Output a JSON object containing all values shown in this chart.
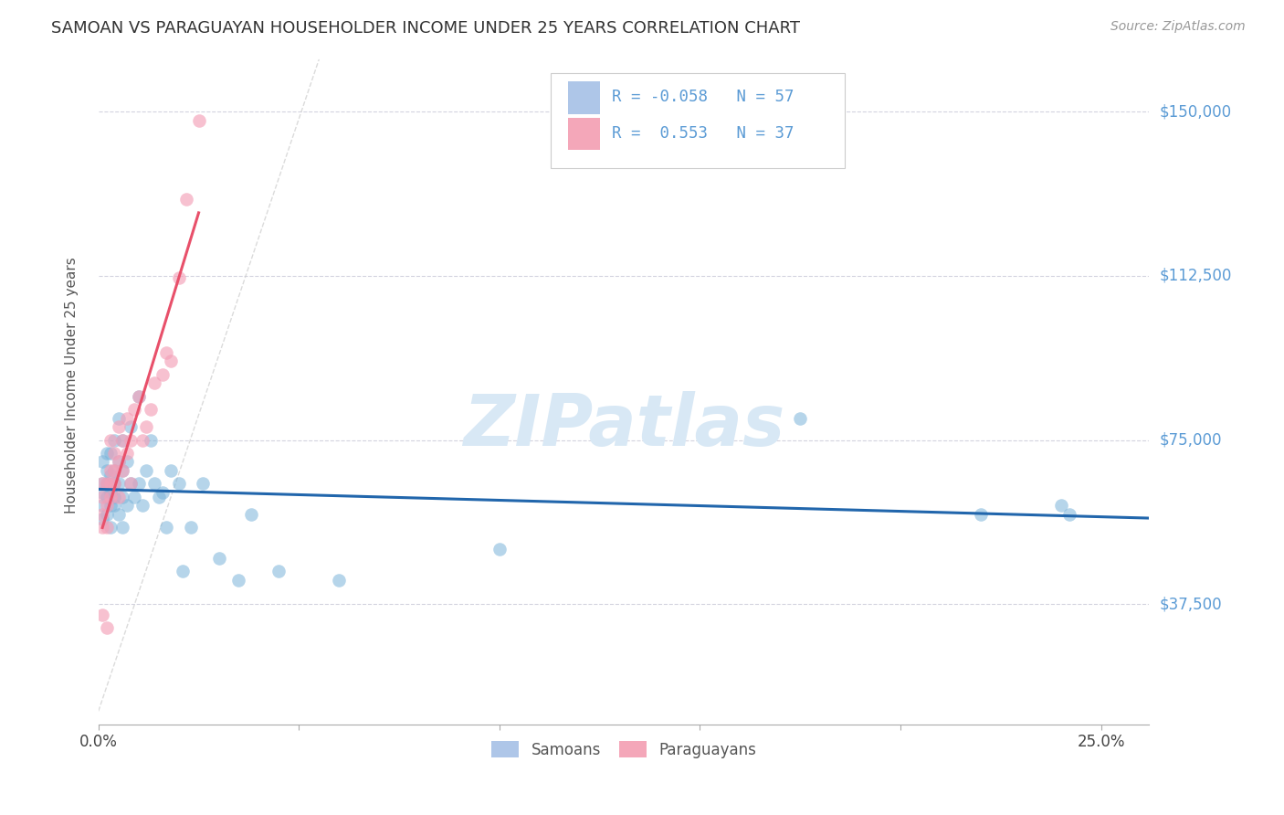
{
  "title": "SAMOAN VS PARAGUAYAN HOUSEHOLDER INCOME UNDER 25 YEARS CORRELATION CHART",
  "source": "Source: ZipAtlas.com",
  "ylabel": "Householder Income Under 25 years",
  "xlim": [
    0.0,
    0.262
  ],
  "ylim": [
    10000,
    165000
  ],
  "samoan_color": "#7ab3d9",
  "paraguayan_color": "#f4a0b8",
  "samoan_trend_color": "#2166ac",
  "paraguayan_trend_color": "#e8506a",
  "legend_blue_color": "#aec6e8",
  "legend_pink_color": "#f4a7b9",
  "watermark_color": "#d8e8f5",
  "r_samoan": -0.058,
  "n_samoan": 57,
  "r_paraguayan": 0.553,
  "n_paraguayan": 37,
  "samoans_x": [
    0.001,
    0.001,
    0.001,
    0.001,
    0.001,
    0.002,
    0.002,
    0.002,
    0.002,
    0.002,
    0.003,
    0.003,
    0.003,
    0.003,
    0.003,
    0.004,
    0.004,
    0.004,
    0.004,
    0.004,
    0.005,
    0.005,
    0.005,
    0.005,
    0.006,
    0.006,
    0.006,
    0.006,
    0.007,
    0.007,
    0.008,
    0.008,
    0.009,
    0.01,
    0.01,
    0.011,
    0.012,
    0.013,
    0.014,
    0.015,
    0.016,
    0.017,
    0.018,
    0.02,
    0.021,
    0.023,
    0.026,
    0.03,
    0.035,
    0.038,
    0.045,
    0.06,
    0.1,
    0.175,
    0.22,
    0.24,
    0.242
  ],
  "samoans_y": [
    63000,
    65000,
    60000,
    70000,
    57000,
    68000,
    62000,
    72000,
    58000,
    65000,
    60000,
    63000,
    67000,
    55000,
    72000,
    65000,
    60000,
    68000,
    75000,
    62000,
    58000,
    70000,
    65000,
    80000,
    75000,
    62000,
    68000,
    55000,
    70000,
    60000,
    78000,
    65000,
    62000,
    85000,
    65000,
    60000,
    68000,
    75000,
    65000,
    62000,
    63000,
    55000,
    68000,
    65000,
    45000,
    55000,
    65000,
    48000,
    43000,
    58000,
    45000,
    43000,
    50000,
    80000,
    58000,
    60000,
    58000
  ],
  "paraguayans_x": [
    0.001,
    0.001,
    0.001,
    0.001,
    0.001,
    0.002,
    0.002,
    0.002,
    0.002,
    0.003,
    0.003,
    0.003,
    0.003,
    0.004,
    0.004,
    0.004,
    0.005,
    0.005,
    0.005,
    0.006,
    0.006,
    0.007,
    0.007,
    0.008,
    0.008,
    0.009,
    0.01,
    0.011,
    0.012,
    0.013,
    0.014,
    0.016,
    0.017,
    0.018,
    0.02,
    0.022,
    0.025
  ],
  "paraguayans_y": [
    62000,
    58000,
    55000,
    65000,
    35000,
    60000,
    65000,
    55000,
    32000,
    65000,
    68000,
    62000,
    75000,
    68000,
    72000,
    65000,
    70000,
    62000,
    78000,
    75000,
    68000,
    80000,
    72000,
    75000,
    65000,
    82000,
    85000,
    75000,
    78000,
    82000,
    88000,
    90000,
    95000,
    93000,
    112000,
    130000,
    148000
  ],
  "ref_line_x": [
    0.0,
    0.055
  ],
  "ref_line_y": [
    13000,
    162000
  ],
  "sam_trend_x": [
    0.0,
    0.262
  ],
  "sam_trend_y": [
    65500,
    61500
  ],
  "par_trend_x": [
    0.001,
    0.025
  ],
  "par_trend_y": [
    45000,
    148000
  ]
}
